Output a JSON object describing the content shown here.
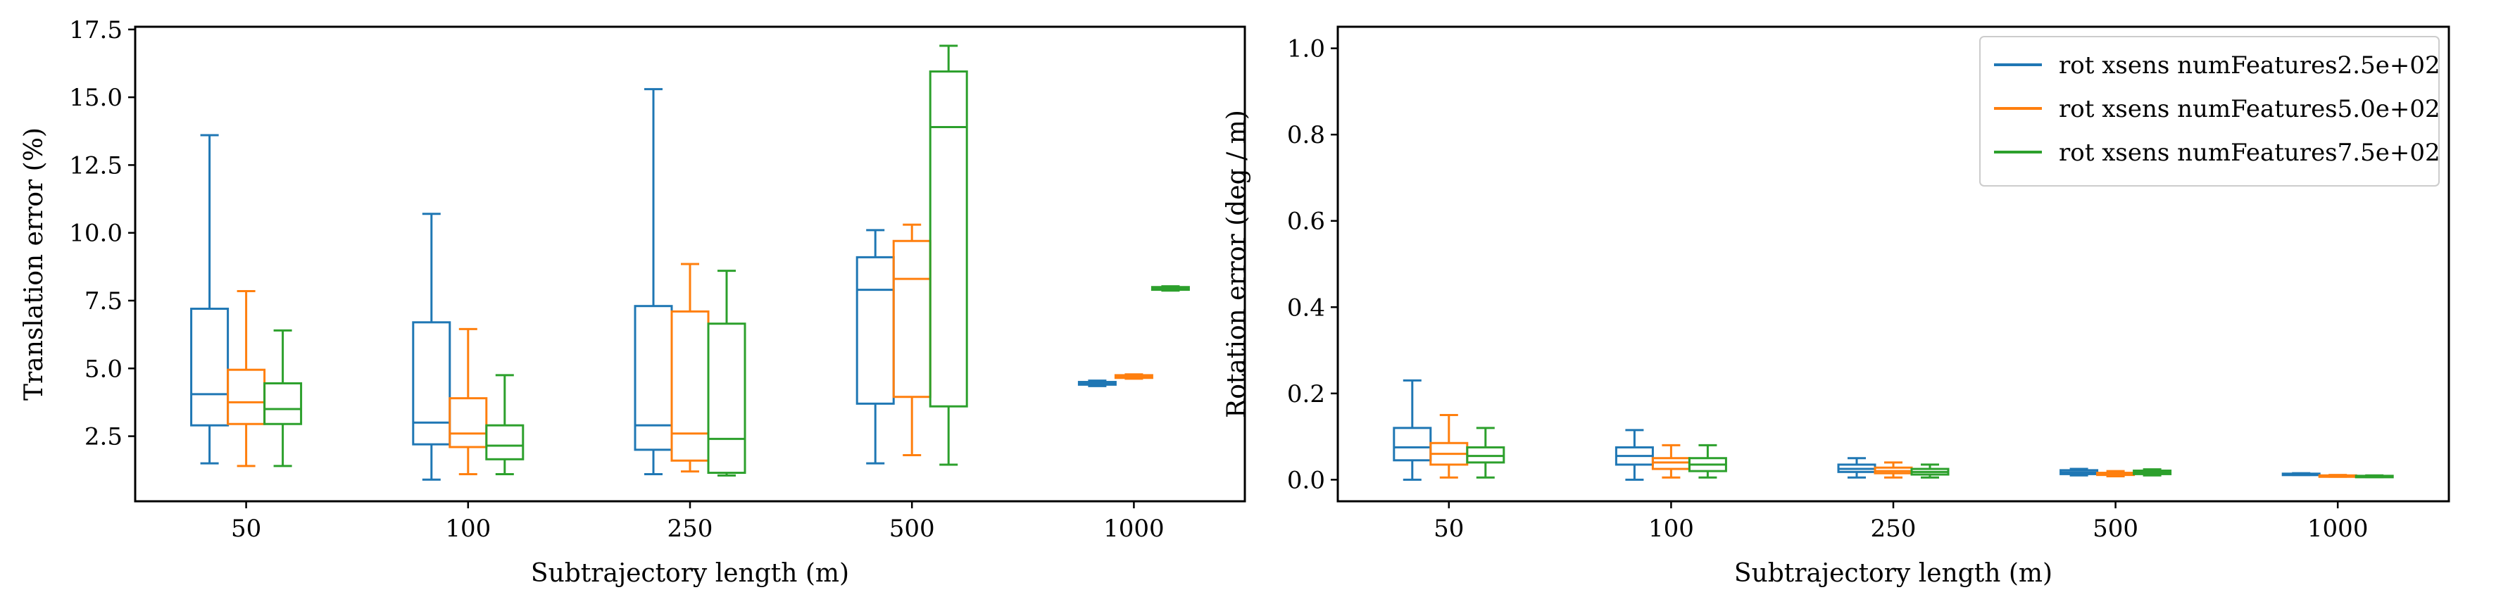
{
  "chart_data": [
    {
      "type": "box",
      "xlabel": "Subtrajectory length (m)",
      "ylabel": "Translation error (%)",
      "categories": [
        "50",
        "100",
        "250",
        "500",
        "1000"
      ],
      "ylim": [
        0.1,
        17.6
      ],
      "yticks": [
        2.5,
        5.0,
        7.5,
        10.0,
        12.5,
        15.0,
        17.5
      ],
      "ytick_labels": [
        "2.5",
        "5.0",
        "7.5",
        "10.0",
        "12.5",
        "15.0",
        "17.5"
      ],
      "series": [
        {
          "name": "rot xsens numFeatures2.5e+02",
          "color": "#1f77b4",
          "boxes": [
            {
              "whislo": 1.5,
              "q1": 2.9,
              "med": 4.05,
              "q3": 7.2,
              "whishi": 13.6
            },
            {
              "whislo": 0.9,
              "q1": 2.2,
              "med": 3.0,
              "q3": 6.7,
              "whishi": 10.7
            },
            {
              "whislo": 1.1,
              "q1": 2.0,
              "med": 2.9,
              "q3": 7.3,
              "whishi": 15.3
            },
            {
              "whislo": 1.5,
              "q1": 3.7,
              "med": 7.9,
              "q3": 9.1,
              "whishi": 10.1
            },
            {
              "whislo": 4.35,
              "q1": 4.4,
              "med": 4.45,
              "q3": 4.5,
              "whishi": 4.55
            }
          ]
        },
        {
          "name": "rot xsens numFeatures5.0e+02",
          "color": "#ff7f0e",
          "boxes": [
            {
              "whislo": 1.4,
              "q1": 2.95,
              "med": 3.75,
              "q3": 4.95,
              "whishi": 7.85
            },
            {
              "whislo": 1.1,
              "q1": 2.1,
              "med": 2.6,
              "q3": 3.9,
              "whishi": 6.45
            },
            {
              "whislo": 1.2,
              "q1": 1.6,
              "med": 2.6,
              "q3": 7.1,
              "whishi": 8.85
            },
            {
              "whislo": 1.8,
              "q1": 3.95,
              "med": 8.3,
              "q3": 9.7,
              "whishi": 10.3
            },
            {
              "whislo": 4.62,
              "q1": 4.65,
              "med": 4.7,
              "q3": 4.75,
              "whishi": 4.78
            }
          ]
        },
        {
          "name": "rot xsens numFeatures7.5e+02",
          "color": "#2ca02c",
          "boxes": [
            {
              "whislo": 1.4,
              "q1": 2.95,
              "med": 3.5,
              "q3": 4.45,
              "whishi": 6.4
            },
            {
              "whislo": 1.1,
              "q1": 1.65,
              "med": 2.15,
              "q3": 2.9,
              "whishi": 4.75
            },
            {
              "whislo": 1.05,
              "q1": 1.15,
              "med": 2.4,
              "q3": 6.65,
              "whishi": 8.6
            },
            {
              "whislo": 1.45,
              "q1": 3.6,
              "med": 13.9,
              "q3": 15.95,
              "whishi": 16.9
            },
            {
              "whislo": 7.87,
              "q1": 7.9,
              "med": 7.95,
              "q3": 8.0,
              "whishi": 8.03
            }
          ]
        }
      ]
    },
    {
      "type": "box",
      "xlabel": "Subtrajectory length (m)",
      "ylabel": "Rotation error (deg / m)",
      "categories": [
        "50",
        "100",
        "250",
        "500",
        "1000"
      ],
      "ylim": [
        -0.05,
        1.05
      ],
      "yticks": [
        0.0,
        0.2,
        0.4,
        0.6,
        0.8,
        1.0
      ],
      "ytick_labels": [
        "0.0",
        "0.2",
        "0.4",
        "0.6",
        "0.8",
        "1.0"
      ],
      "legend": {
        "loc": "upper right"
      },
      "series": [
        {
          "name": "rot xsens numFeatures2.5e+02",
          "color": "#1f77b4",
          "boxes": [
            {
              "whislo": 0.0,
              "q1": 0.045,
              "med": 0.075,
              "q3": 0.12,
              "whishi": 0.23
            },
            {
              "whislo": 0.0,
              "q1": 0.035,
              "med": 0.055,
              "q3": 0.075,
              "whishi": 0.115
            },
            {
              "whislo": 0.005,
              "q1": 0.018,
              "med": 0.025,
              "q3": 0.035,
              "whishi": 0.05
            },
            {
              "whislo": 0.01,
              "q1": 0.013,
              "med": 0.017,
              "q3": 0.022,
              "whishi": 0.025
            },
            {
              "whislo": 0.011,
              "q1": 0.012,
              "med": 0.013,
              "q3": 0.014,
              "whishi": 0.015
            }
          ]
        },
        {
          "name": "rot xsens numFeatures5.0e+02",
          "color": "#ff7f0e",
          "boxes": [
            {
              "whislo": 0.005,
              "q1": 0.035,
              "med": 0.06,
              "q3": 0.085,
              "whishi": 0.15
            },
            {
              "whislo": 0.005,
              "q1": 0.025,
              "med": 0.04,
              "q3": 0.05,
              "whishi": 0.08
            },
            {
              "whislo": 0.005,
              "q1": 0.015,
              "med": 0.02,
              "q3": 0.028,
              "whishi": 0.04
            },
            {
              "whislo": 0.008,
              "q1": 0.011,
              "med": 0.013,
              "q3": 0.016,
              "whishi": 0.02
            },
            {
              "whislo": 0.007,
              "q1": 0.008,
              "med": 0.009,
              "q3": 0.01,
              "whishi": 0.011
            }
          ]
        },
        {
          "name": "rot xsens numFeatures7.5e+02",
          "color": "#2ca02c",
          "boxes": [
            {
              "whislo": 0.005,
              "q1": 0.04,
              "med": 0.055,
              "q3": 0.075,
              "whishi": 0.12
            },
            {
              "whislo": 0.005,
              "q1": 0.02,
              "med": 0.035,
              "q3": 0.05,
              "whishi": 0.08
            },
            {
              "whislo": 0.005,
              "q1": 0.012,
              "med": 0.018,
              "q3": 0.025,
              "whishi": 0.035
            },
            {
              "whislo": 0.01,
              "q1": 0.013,
              "med": 0.017,
              "q3": 0.021,
              "whishi": 0.024
            },
            {
              "whislo": 0.006,
              "q1": 0.007,
              "med": 0.008,
              "q3": 0.009,
              "whishi": 0.01
            }
          ]
        }
      ]
    }
  ]
}
